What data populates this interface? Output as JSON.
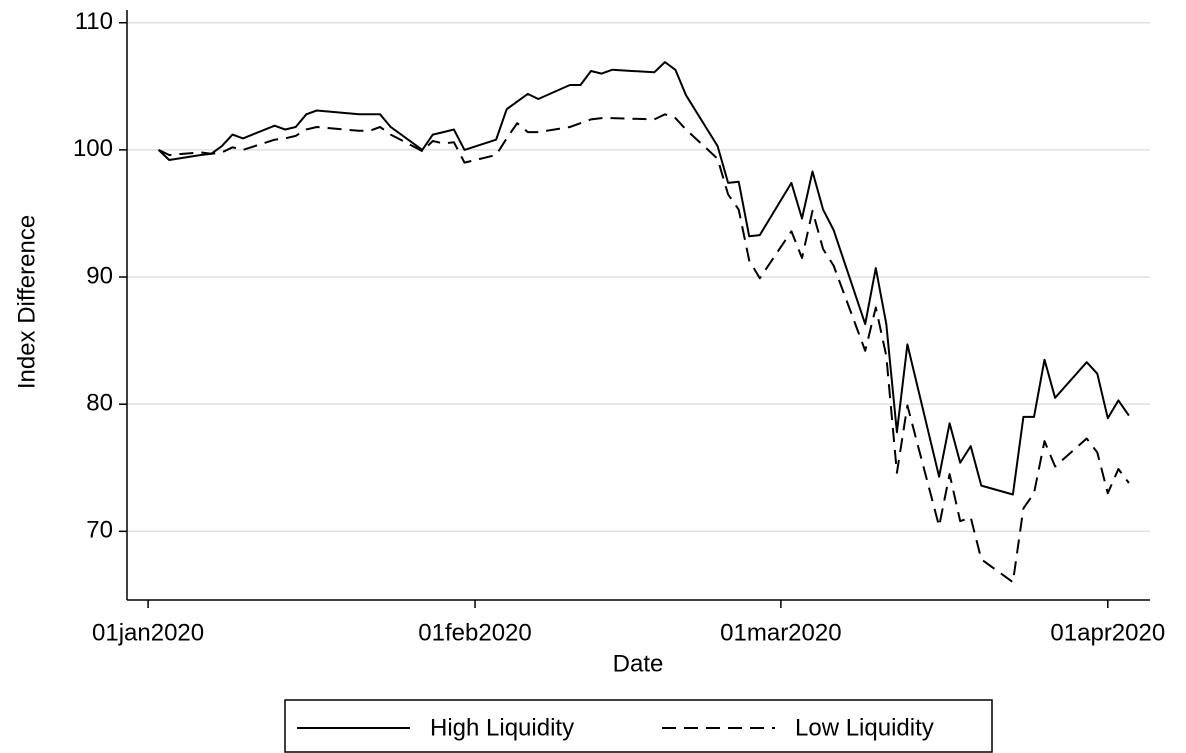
{
  "chart_data": {
    "type": "line",
    "xlabel": "Date",
    "ylabel": "Index Difference",
    "x": [
      "2020-01-02",
      "2020-01-03",
      "2020-01-06",
      "2020-01-07",
      "2020-01-08",
      "2020-01-09",
      "2020-01-10",
      "2020-01-13",
      "2020-01-14",
      "2020-01-15",
      "2020-01-16",
      "2020-01-17",
      "2020-01-21",
      "2020-01-22",
      "2020-01-23",
      "2020-01-24",
      "2020-01-27",
      "2020-01-28",
      "2020-01-29",
      "2020-01-30",
      "2020-01-31",
      "2020-02-03",
      "2020-02-04",
      "2020-02-05",
      "2020-02-06",
      "2020-02-07",
      "2020-02-10",
      "2020-02-11",
      "2020-02-12",
      "2020-02-13",
      "2020-02-14",
      "2020-02-18",
      "2020-02-19",
      "2020-02-20",
      "2020-02-21",
      "2020-02-24",
      "2020-02-25",
      "2020-02-26",
      "2020-02-27",
      "2020-02-28",
      "2020-03-02",
      "2020-03-03",
      "2020-03-04",
      "2020-03-05",
      "2020-03-06",
      "2020-03-09",
      "2020-03-10",
      "2020-03-11",
      "2020-03-12",
      "2020-03-13",
      "2020-03-16",
      "2020-03-17",
      "2020-03-18",
      "2020-03-19",
      "2020-03-20",
      "2020-03-23",
      "2020-03-24",
      "2020-03-25",
      "2020-03-26",
      "2020-03-27",
      "2020-03-30",
      "2020-03-31",
      "2020-04-01",
      "2020-04-02",
      "2020-04-03"
    ],
    "series": [
      {
        "name": "High Liquidity",
        "color": "#000000",
        "linestyle": "solid",
        "values": [
          100,
          99.2,
          99.6,
          99.7,
          100.3,
          101.2,
          100.9,
          101.9,
          101.6,
          101.8,
          102.8,
          103.1,
          102.8,
          102.8,
          102.8,
          101.8,
          100.0,
          101.2,
          101.4,
          101.6,
          100.0,
          100.8,
          103.2,
          103.8,
          104.4,
          104.0,
          105.1,
          105.1,
          106.2,
          106.0,
          106.3,
          106.1,
          106.9,
          106.3,
          104.3,
          100.3,
          97.4,
          97.5,
          93.2,
          93.3,
          97.4,
          94.6,
          98.3,
          95.3,
          93.7,
          86.3,
          90.7,
          86.3,
          77.8,
          84.7,
          74.3,
          78.5,
          75.4,
          76.7,
          73.6,
          72.9,
          79.0,
          79.0,
          83.5,
          80.5,
          83.3,
          82.4,
          78.9,
          80.3,
          79.1
        ]
      },
      {
        "name": "Low Liquidity",
        "color": "#000000",
        "linestyle": "dashed",
        "values": [
          100,
          99.6,
          99.8,
          99.7,
          99.8,
          100.2,
          100.0,
          100.8,
          100.9,
          101.1,
          101.6,
          101.8,
          101.5,
          101.5,
          101.8,
          101.2,
          99.9,
          100.7,
          100.5,
          100.6,
          99.0,
          99.6,
          100.9,
          102.1,
          101.4,
          101.4,
          101.8,
          102.1,
          102.4,
          102.5,
          102.5,
          102.4,
          102.8,
          102.5,
          101.6,
          99.3,
          96.5,
          95.3,
          91.3,
          89.9,
          93.6,
          91.5,
          95.2,
          92.2,
          90.9,
          84.2,
          87.6,
          83.8,
          74.6,
          79.9,
          70.4,
          74.5,
          70.8,
          71.1,
          67.8,
          66.0,
          71.8,
          73.0,
          77.1,
          75.1,
          77.3,
          76.2,
          73.0,
          74.9,
          73.8
        ]
      }
    ],
    "xlim": [
      "2019-12-30",
      "2020-04-05"
    ],
    "xticks": [
      {
        "value": "2020-01-01",
        "label": "01jan2020"
      },
      {
        "value": "2020-02-01",
        "label": "01feb2020"
      },
      {
        "value": "2020-03-01",
        "label": "01mar2020"
      },
      {
        "value": "2020-04-01",
        "label": "01apr2020"
      }
    ],
    "ylim": [
      64.6,
      111
    ],
    "yticks": [
      70,
      80,
      90,
      100,
      110
    ],
    "grid": true,
    "legend": "bottom"
  }
}
